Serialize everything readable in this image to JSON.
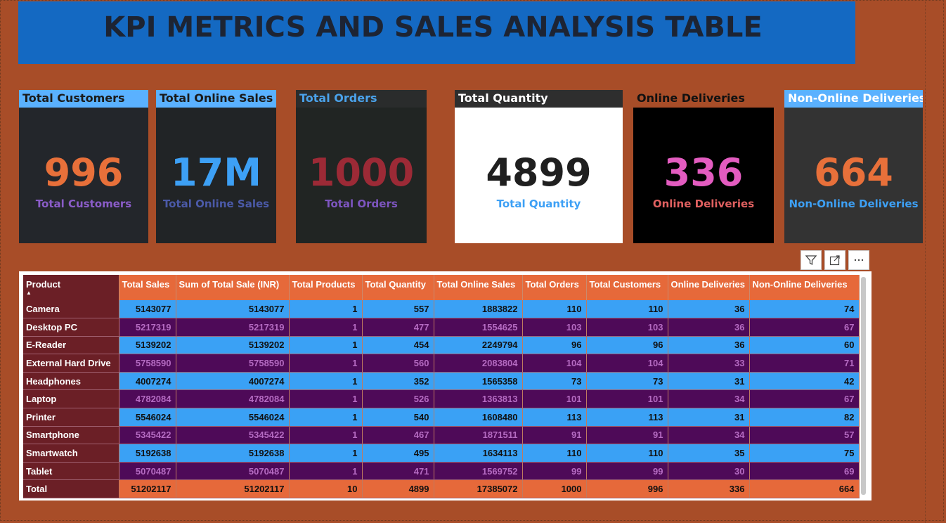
{
  "title": "KPI METRICS AND SALES ANALYSIS TABLE",
  "cards": [
    {
      "header": "Total Customers",
      "value": "996",
      "label": "Total Customers",
      "hdr_bg": "#5ab1ff",
      "hdr_color": "#1a1a1a",
      "body_bg": "#23262b",
      "value_color": "#e8703a",
      "label_color": "#8a5cc8"
    },
    {
      "header": "Total Online Sales",
      "value": "17M",
      "label": "Total Online Sales",
      "hdr_bg": "#5ab1ff",
      "hdr_color": "#1a1a1a",
      "body_bg": "#212426",
      "value_color": "#3da0f5",
      "label_color": "#4b5aa8"
    },
    {
      "header": "Total Orders",
      "value": "1000",
      "label": "Total Orders",
      "hdr_bg": "#2a2c2c",
      "hdr_color": "#4aa2ea",
      "body_bg": "#212523",
      "value_color": "#9c2a36",
      "label_color": "#7d55c0"
    },
    {
      "header": "Total Quantity",
      "value": "4899",
      "label": "Total Quantity",
      "hdr_bg": "#2e2e2e",
      "hdr_color": "#ffffff",
      "body_bg": "#ffffff",
      "value_color": "#1f1f1f",
      "label_color": "#3da0f5"
    },
    {
      "header": "Online Deliveries",
      "value": "336",
      "label": "Online Deliveries",
      "hdr_bg": "#a84d28",
      "hdr_color": "#111111",
      "body_bg": "#000000",
      "value_color": "#e35cc0",
      "label_color": "#e06060"
    },
    {
      "header": "Non-Online Deliveries",
      "value": "664",
      "label": "Non-Online Deliveries",
      "hdr_bg": "#5ab1ff",
      "hdr_color": "#ffffff",
      "body_bg": "#333333",
      "value_color": "#e8703a",
      "label_color": "#3da0f5"
    }
  ],
  "toolbar": {
    "filter_icon": "filter-icon",
    "focus_icon": "focus-mode-icon",
    "more_icon": "more-options-icon"
  },
  "table": {
    "columns": [
      "Product",
      "Total Sales",
      "Sum of Total Sale (INR)",
      "Total Products",
      "Total Quantity",
      "Total Online Sales",
      "Total Orders",
      "Total Customers",
      "Online Deliveries",
      "Non-Online Deliveries"
    ],
    "sort_column": "Product",
    "rows": [
      [
        "Camera",
        "5143077",
        "5143077",
        "1",
        "557",
        "1883822",
        "110",
        "110",
        "36",
        "74"
      ],
      [
        "Desktop PC",
        "5217319",
        "5217319",
        "1",
        "477",
        "1554625",
        "103",
        "103",
        "36",
        "67"
      ],
      [
        "E-Reader",
        "5139202",
        "5139202",
        "1",
        "454",
        "2249794",
        "96",
        "96",
        "36",
        "60"
      ],
      [
        "External Hard Drive",
        "5758590",
        "5758590",
        "1",
        "560",
        "2083804",
        "104",
        "104",
        "33",
        "71"
      ],
      [
        "Headphones",
        "4007274",
        "4007274",
        "1",
        "352",
        "1565358",
        "73",
        "73",
        "31",
        "42"
      ],
      [
        "Laptop",
        "4782084",
        "4782084",
        "1",
        "526",
        "1363813",
        "101",
        "101",
        "34",
        "67"
      ],
      [
        "Printer",
        "5546024",
        "5546024",
        "1",
        "540",
        "1608480",
        "113",
        "113",
        "31",
        "82"
      ],
      [
        "Smartphone",
        "5345422",
        "5345422",
        "1",
        "467",
        "1871511",
        "91",
        "91",
        "34",
        "57"
      ],
      [
        "Smartwatch",
        "5192638",
        "5192638",
        "1",
        "495",
        "1634113",
        "110",
        "110",
        "35",
        "75"
      ],
      [
        "Tablet",
        "5070487",
        "5070487",
        "1",
        "471",
        "1569752",
        "99",
        "99",
        "30",
        "69"
      ]
    ],
    "total": [
      "Total",
      "51202117",
      "51202117",
      "10",
      "4899",
      "17385072",
      "1000",
      "996",
      "336",
      "664"
    ]
  }
}
